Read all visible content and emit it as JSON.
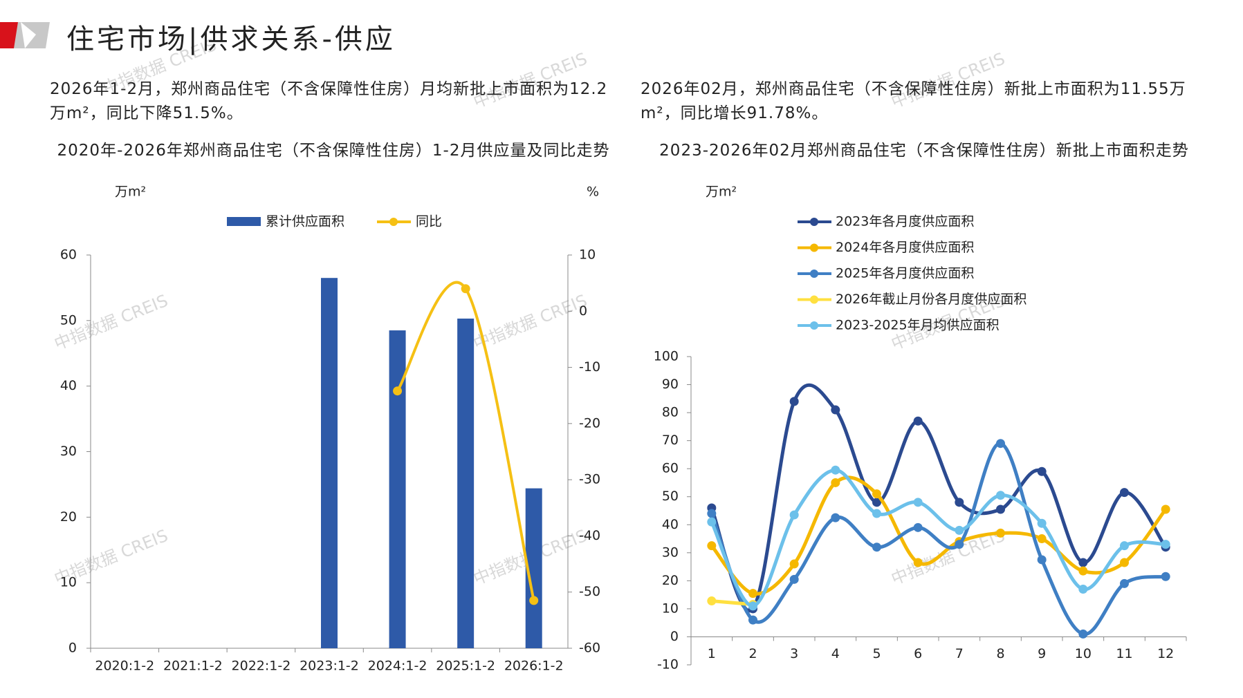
{
  "header": {
    "title": "住宅市场|供求关系-供应"
  },
  "notes": [
    "2026年1-2月，郑州商品住宅（不含保障性住房）月均新批上市面积为12.2万m²，同比下降51.5%。",
    "2026年02月，郑州商品住宅（不含保障性住房）新批上市面积为11.55万m²，同比增长91.78%。"
  ],
  "watermark": "中指数据 CREIS",
  "chart_data": [
    {
      "type": "bar",
      "title": "2020年-2026年郑州商品住宅（不含保障性住房）1-2月供应量及同比走势",
      "y_label": "万m²",
      "y2_label": "%",
      "categories": [
        "2020:1-2",
        "2021:1-2",
        "2022:1-2",
        "2023:1-2",
        "2024:1-2",
        "2025:1-2",
        "2026:1-2"
      ],
      "series": [
        {
          "name": "累计供应面积",
          "type": "bar",
          "color": "#2e5aa8",
          "values": [
            null,
            null,
            null,
            56.5,
            48.5,
            50.3,
            24.4
          ]
        },
        {
          "name": "同比",
          "type": "line",
          "axis": "y2",
          "color": "#f5c014",
          "values": [
            null,
            null,
            null,
            null,
            -14.2,
            4,
            -51.5
          ]
        }
      ],
      "ylim": [
        0,
        60
      ],
      "yticks": [
        0,
        10,
        20,
        30,
        40,
        50,
        60
      ],
      "y2lim": [
        -60,
        10
      ],
      "y2ticks": [
        -60,
        -50,
        -40,
        -30,
        -20,
        -10,
        0,
        10
      ],
      "grid": false,
      "legend": "top"
    },
    {
      "type": "line",
      "title": "2023-2026年02月郑州商品住宅（不含保障性住房）新批上市面积走势",
      "y_label": "万m²",
      "categories": [
        "1",
        "2",
        "3",
        "4",
        "5",
        "6",
        "7",
        "8",
        "9",
        "10",
        "11",
        "12"
      ],
      "series": [
        {
          "name": "2023年各月度供应面积",
          "color": "#2b4a90",
          "values": [
            46,
            10,
            84,
            81,
            48,
            77,
            48,
            45.5,
            59,
            26.5,
            51.5,
            32
          ]
        },
        {
          "name": "2024年各月度供应面积",
          "color": "#f5b800",
          "values": [
            32.5,
            15.5,
            26,
            55,
            51,
            26.5,
            34,
            37,
            35,
            23.5,
            26.5,
            45.5
          ]
        },
        {
          "name": "2025年各月度供应面积",
          "color": "#3f7fc4",
          "values": [
            44,
            6,
            20.5,
            42.5,
            32,
            39,
            33,
            69,
            27.5,
            1,
            19,
            21.5
          ]
        },
        {
          "name": "2026年截止月份各月度供应面积",
          "color": "#ffe040",
          "values": [
            12.8,
            11.55,
            null,
            null,
            null,
            null,
            null,
            null,
            null,
            null,
            null,
            null
          ]
        },
        {
          "name": "2023-2025年月均供应面积",
          "color": "#6cc0ea",
          "values": [
            41,
            11,
            43.5,
            59.5,
            44,
            48,
            38,
            50.5,
            40.5,
            17,
            32.5,
            33
          ]
        }
      ],
      "ylim": [
        -10,
        100
      ],
      "yticks": [
        -10,
        0,
        10,
        20,
        30,
        40,
        50,
        60,
        70,
        80,
        90,
        100
      ],
      "grid": false,
      "legend": "top"
    }
  ]
}
